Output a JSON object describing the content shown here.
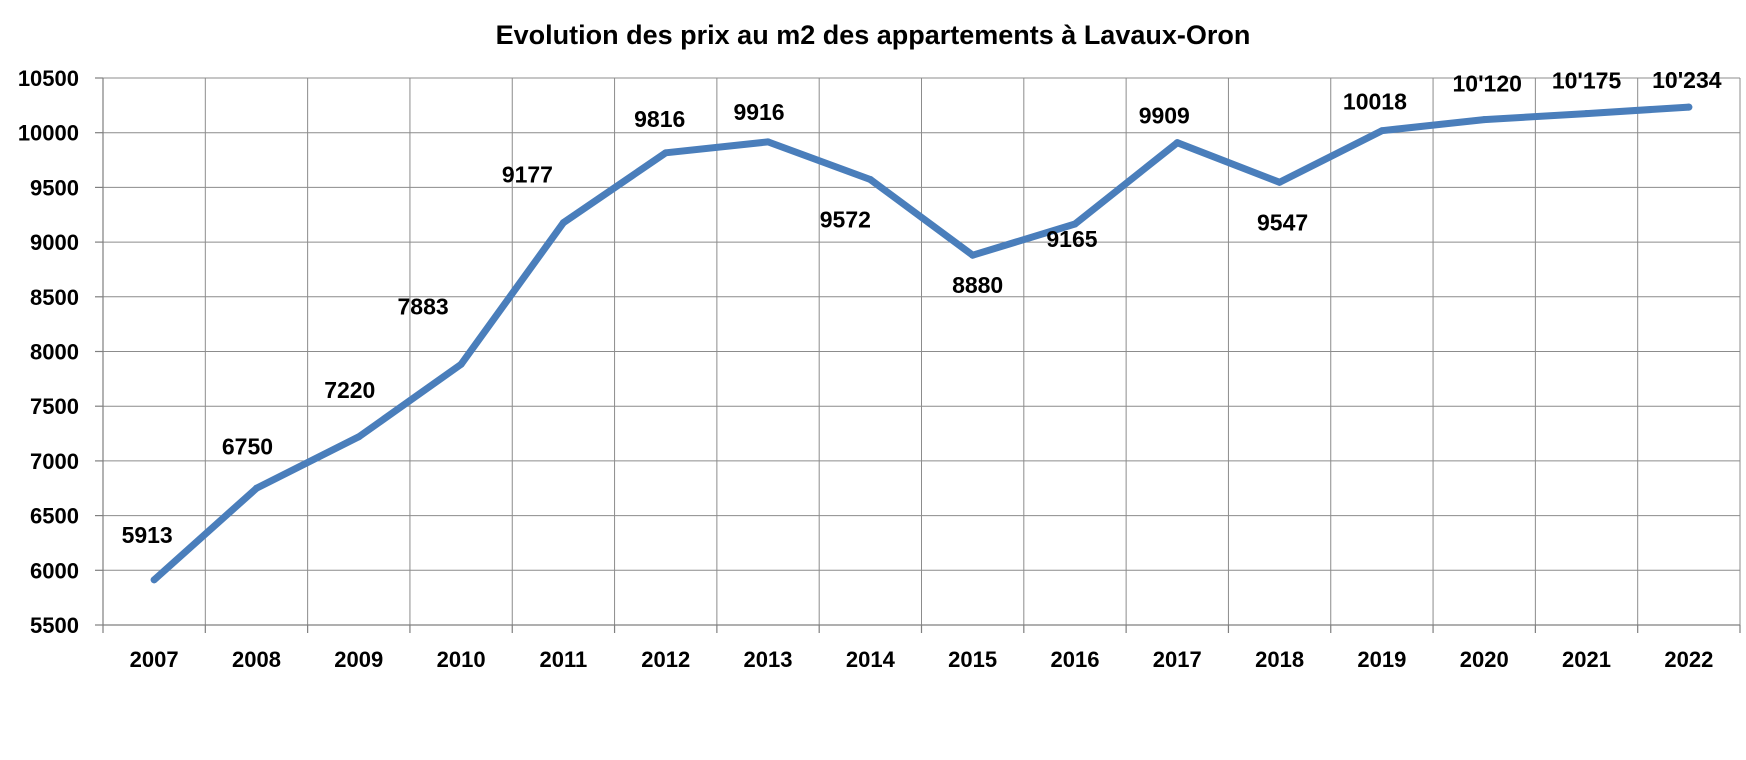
{
  "chart_data": {
    "type": "line",
    "title": "Evolution des prix au m2 des appartements à Lavaux-Oron",
    "xlabel": "",
    "ylabel": "",
    "categories": [
      "2007",
      "2008",
      "2009",
      "2010",
      "2011",
      "2012",
      "2013",
      "2014",
      "2015",
      "2016",
      "2017",
      "2018",
      "2019",
      "2020",
      "2021",
      "2022"
    ],
    "series": [
      {
        "values": [
          5913,
          6750,
          7220,
          7883,
          9177,
          9816,
          9916,
          9572,
          8880,
          9165,
          9909,
          9547,
          10018,
          10120,
          10175,
          10234
        ],
        "labels": [
          "5913",
          "6750",
          "7220",
          "7883",
          "9177",
          "9816",
          "9916",
          "9572",
          "8880",
          "9165",
          "9909",
          "9547",
          "10018",
          "10'120",
          "10'175",
          "10'234"
        ],
        "color": "#4a7ebb"
      }
    ],
    "ylim": [
      5500,
      10500
    ],
    "yticks": [
      5500,
      6000,
      6500,
      7000,
      7500,
      8000,
      8500,
      9000,
      9500,
      10000,
      10500
    ],
    "grid": true,
    "legend": "none"
  }
}
